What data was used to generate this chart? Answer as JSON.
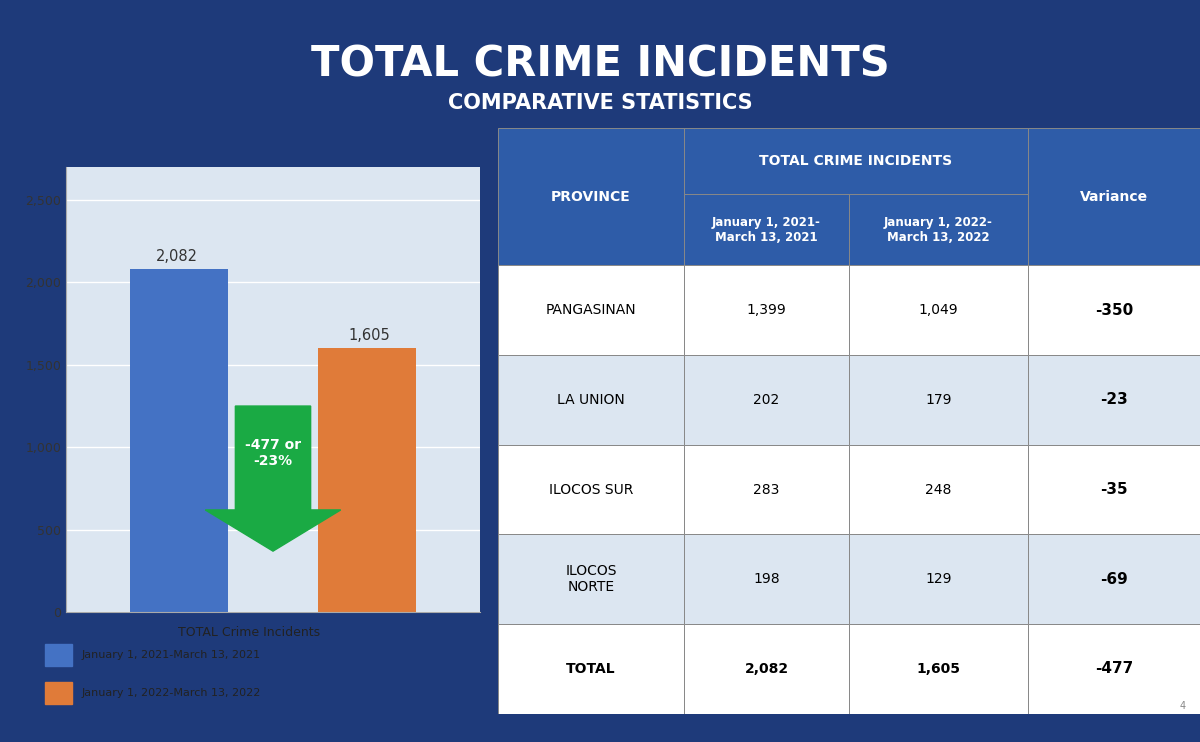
{
  "title": "TOTAL CRIME INCIDENTS",
  "subtitle": "COMPARATIVE STATISTICS",
  "header_bg": "#1e3a7a",
  "header_text_color": "#ffffff",
  "bar_values": [
    2082,
    1605
  ],
  "bar_colors": [
    "#4472c4",
    "#e07b39"
  ],
  "bar_labels": [
    "January 1, 2021-March 13, 2021",
    "January 1, 2022-March 13, 2022"
  ],
  "bar_chart_title": "TOTAL Crime Incidents",
  "arrow_text": "-477 or\n-23%",
  "arrow_color": "#1aaa44",
  "outer_bg": "#1e3a7a",
  "chart_outer_bg": "#c8d4e8",
  "chart_inner_bg": "#dce6f1",
  "table_header_bg": "#2e5ca8",
  "table_header_text": "#ffffff",
  "table_row_bg1": "#ffffff",
  "table_row_bg2": "#dce6f1",
  "table_border_color": "#888888",
  "provinces": [
    "PANGASINAN",
    "LA UNION",
    "ILOCOS SUR",
    "ILOCOS\nNORTE",
    "TOTAL"
  ],
  "col2021": [
    1399,
    202,
    283,
    198,
    2082
  ],
  "col2022": [
    1049,
    179,
    248,
    129,
    1605
  ],
  "variance_display": [
    "-350",
    "-23",
    "-35",
    "-69",
    "-477"
  ],
  "ylim": [
    0,
    2700
  ],
  "yticks": [
    0,
    500,
    1000,
    1500,
    2000,
    2500
  ],
  "fig_bg": "#1e1e2e",
  "sep_color": "#ffffff",
  "bottom_bar_color": "#1a1a2e"
}
